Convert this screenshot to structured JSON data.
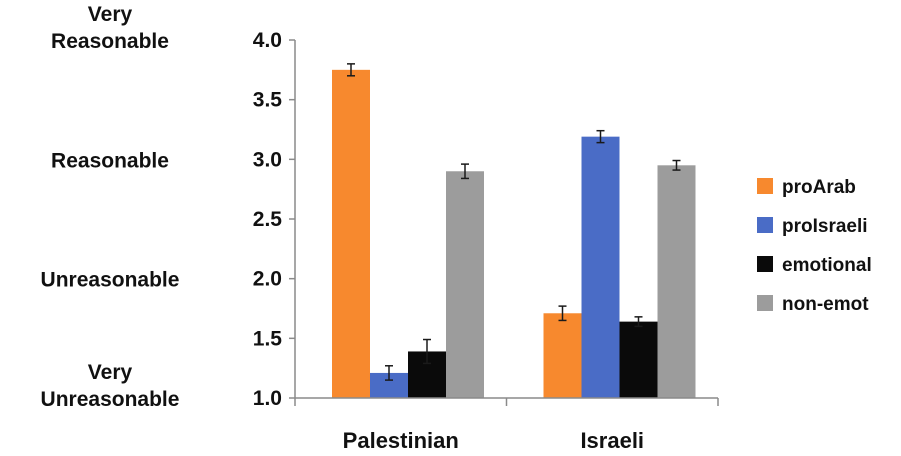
{
  "chart_data": {
    "type": "bar",
    "categories": [
      "Palestinian",
      "Israeli"
    ],
    "series": [
      {
        "name": "proArab",
        "color": "#F7892E",
        "values": [
          3.75,
          1.71
        ],
        "errors": [
          0.05,
          0.06
        ]
      },
      {
        "name": "proIsraeli",
        "color": "#4A6CC6",
        "values": [
          1.21,
          3.19
        ],
        "errors": [
          0.06,
          0.05
        ]
      },
      {
        "name": "emotional",
        "color": "#0a0a0a",
        "values": [
          1.39,
          1.64
        ],
        "errors": [
          0.1,
          0.04
        ]
      },
      {
        "name": "non-emot",
        "color": "#9c9c9c",
        "values": [
          2.9,
          2.95
        ],
        "errors": [
          0.06,
          0.04
        ]
      }
    ],
    "ylim": [
      1.0,
      4.0
    ],
    "yticks": [
      "1.0",
      "1.5",
      "2.0",
      "2.5",
      "3.0",
      "3.5",
      "4.0"
    ],
    "rating_labels": [
      {
        "lines": [
          "Very",
          "Reasonable"
        ],
        "value": 4.0
      },
      {
        "lines": [
          "Reasonable"
        ],
        "value": 3.0
      },
      {
        "lines": [
          "Unreasonable"
        ],
        "value": 2.0
      },
      {
        "lines": [
          "Very",
          "Unreasonable"
        ],
        "value": 1.0
      }
    ],
    "grid": false,
    "legend_position": "right",
    "error_bars": true
  }
}
